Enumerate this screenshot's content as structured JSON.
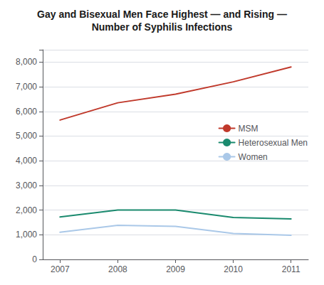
{
  "chart_data": {
    "type": "line",
    "title": "Gay and Bisexual Men Face Highest — and Rising —",
    "subtitle": "Number of Syphilis Infections",
    "x": [
      2007,
      2008,
      2009,
      2010,
      2011
    ],
    "series": [
      {
        "name": "MSM",
        "color": "#c0392b",
        "values": [
          5650,
          6350,
          6700,
          7200,
          7800
        ]
      },
      {
        "name": "Heterosexual Men",
        "color": "#1a8a6e",
        "values": [
          1720,
          2000,
          2000,
          1700,
          1640
        ]
      },
      {
        "name": "Women",
        "color": "#aac8e8",
        "values": [
          1100,
          1380,
          1340,
          1050,
          980
        ]
      }
    ],
    "xlim": [
      2006.7,
      2011.3
    ],
    "xticks": [
      2007,
      2008,
      2009,
      2010,
      2011
    ],
    "ylim": [
      0,
      8500
    ],
    "yticks": [
      0,
      {
        "value": 1000,
        "label": "1,000"
      },
      {
        "value": 2000,
        "label": "2,000"
      },
      {
        "value": 3000,
        "label": "3,000"
      },
      {
        "value": 4000,
        "label": "4,000"
      },
      {
        "value": 5000,
        "label": "5,000"
      },
      {
        "value": 6000,
        "label": "6,000"
      },
      {
        "value": 7000,
        "label": "7,000"
      },
      {
        "value": 8000,
        "label": "8,000"
      }
    ],
    "grid": true,
    "legend": "right"
  }
}
